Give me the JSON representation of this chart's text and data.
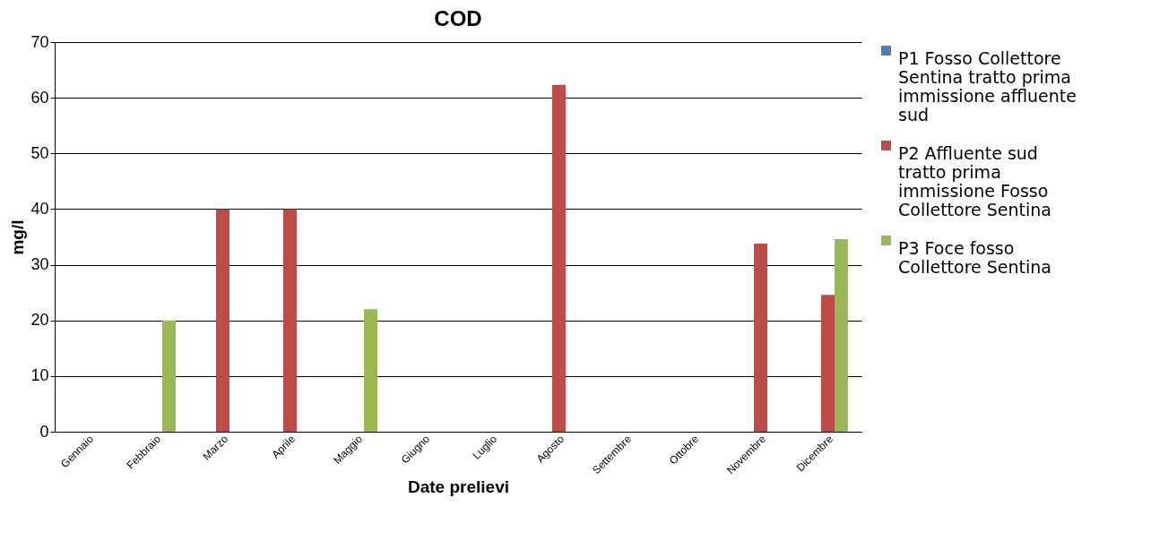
{
  "chart_data": {
    "type": "bar",
    "title": "COD",
    "xlabel": "Date prelievi",
    "ylabel": "mg/l",
    "categories": [
      "Gennaio",
      "Febbraio",
      "Marzo",
      "Aprile",
      "Maggio",
      "Giugno",
      "Luglio",
      "Agosto",
      "Settembre",
      "Ottobre",
      "Novembre",
      "Dicembre"
    ],
    "series": [
      {
        "name": "P1 Fosso Collettore Sentina tratto prima immissione affluente sud",
        "color": "#4a7ebb",
        "values": [
          null,
          null,
          null,
          null,
          null,
          null,
          null,
          null,
          null,
          null,
          null,
          null
        ]
      },
      {
        "name": "P2 Affluente sud tratto prima immissione Fosso Collettore Sentina",
        "color": "#be4b48",
        "values": [
          null,
          null,
          40,
          40,
          null,
          null,
          null,
          62.3,
          null,
          null,
          33.8,
          24.6
        ]
      },
      {
        "name": "P3 Foce fosso Collettore Sentina",
        "color": "#98b954",
        "values": [
          null,
          20,
          null,
          null,
          22,
          null,
          null,
          null,
          null,
          null,
          null,
          34.6
        ]
      }
    ],
    "ylim": [
      0,
      70
    ],
    "yticks": [
      0,
      10,
      20,
      30,
      40,
      50,
      60,
      70
    ],
    "grid": "y",
    "legend": "right"
  }
}
